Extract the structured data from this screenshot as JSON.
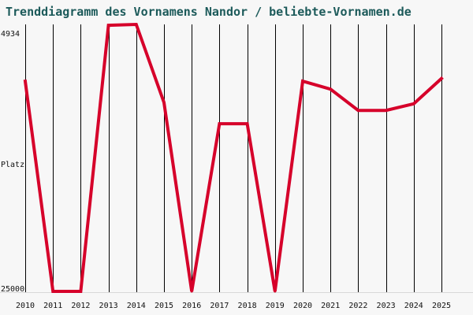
{
  "title": "Trenddiagramm des Vornamens Nandor / beliebte-Vornamen.de",
  "chart_data": {
    "type": "line",
    "title": "Trenddiagramm des Vornamens Nandor / beliebte-Vornamen.de",
    "ylabel": "Platz",
    "y_top_label": "4934",
    "y_bottom_label": "25000",
    "ylim": [
      25000,
      4934
    ],
    "y_inverted": true,
    "grid": "vertical",
    "line_color": "#d6002a",
    "x": [
      "2010",
      "2011",
      "2012",
      "2013",
      "2014",
      "2015",
      "2016",
      "2017",
      "2018",
      "2019",
      "2020",
      "2021",
      "2022",
      "2023",
      "2024",
      "2025"
    ],
    "series": [
      {
        "values": [
          9200,
          25000,
          25000,
          5000,
          4934,
          10800,
          25000,
          12400,
          12400,
          25000,
          9200,
          9800,
          11400,
          11400,
          10900,
          9000
        ]
      }
    ]
  }
}
